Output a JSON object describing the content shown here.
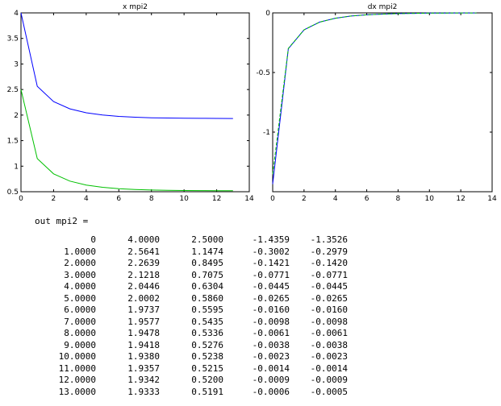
{
  "chart_data": [
    {
      "type": "line",
      "title": "x mpi2",
      "xlim": [
        0,
        14
      ],
      "ylim": [
        0.5,
        4
      ],
      "xticks": [
        "0",
        "2",
        "4",
        "6",
        "8",
        "10",
        "12",
        "14"
      ],
      "yticks": [
        "0.5",
        "1",
        "1.5",
        "2",
        "2.5",
        "3",
        "3.5",
        "4"
      ],
      "x": [
        0,
        1,
        2,
        3,
        4,
        5,
        6,
        7,
        8,
        9,
        10,
        11,
        12,
        13
      ],
      "series": [
        {
          "color": "#0000ff",
          "values": [
            4.0,
            2.5641,
            2.2639,
            2.1218,
            2.0446,
            2.0002,
            1.9737,
            1.9577,
            1.9478,
            1.9418,
            1.938,
            1.9357,
            1.9342,
            1.9333
          ]
        },
        {
          "color": "#00c000",
          "values": [
            2.5,
            1.1474,
            0.8495,
            0.7075,
            0.6304,
            0.586,
            0.5595,
            0.5435,
            0.5336,
            0.5276,
            0.5238,
            0.5215,
            0.52,
            0.5191
          ]
        }
      ]
    },
    {
      "type": "line",
      "title": "dx mpi2",
      "xlim": [
        0,
        14
      ],
      "ylim": [
        -1.5,
        0
      ],
      "xticks": [
        "0",
        "2",
        "4",
        "6",
        "8",
        "10",
        "12",
        "14"
      ],
      "yticks": [
        "0",
        "-0.5",
        "-1"
      ],
      "ytick_values": [
        0,
        -0.5,
        -1
      ],
      "x": [
        0,
        1,
        2,
        3,
        4,
        5,
        6,
        7,
        8,
        9,
        10,
        11,
        12,
        13
      ],
      "series": [
        {
          "color": "#0000ff",
          "values": [
            -1.4359,
            -0.3002,
            -0.1421,
            -0.0771,
            -0.0445,
            -0.0265,
            -0.016,
            -0.0098,
            -0.0061,
            -0.0038,
            -0.0023,
            -0.0014,
            -0.0009,
            -0.0006
          ]
        },
        {
          "color": "#00c000",
          "values": [
            -1.3526,
            -0.2979,
            -0.142,
            -0.0771,
            -0.0445,
            -0.0265,
            -0.016,
            -0.0098,
            -0.0061,
            -0.0038,
            -0.0023,
            -0.0014,
            -0.0009,
            -0.0005
          ]
        }
      ]
    }
  ],
  "output": {
    "label": "out mpi2 =",
    "rows": [
      [
        "0",
        "4.0000",
        "2.5000",
        "-1.4359",
        "-1.3526"
      ],
      [
        "1.0000",
        "2.5641",
        "1.1474",
        "-0.3002",
        "-0.2979"
      ],
      [
        "2.0000",
        "2.2639",
        "0.8495",
        "-0.1421",
        "-0.1420"
      ],
      [
        "3.0000",
        "2.1218",
        "0.7075",
        "-0.0771",
        "-0.0771"
      ],
      [
        "4.0000",
        "2.0446",
        "0.6304",
        "-0.0445",
        "-0.0445"
      ],
      [
        "5.0000",
        "2.0002",
        "0.5860",
        "-0.0265",
        "-0.0265"
      ],
      [
        "6.0000",
        "1.9737",
        "0.5595",
        "-0.0160",
        "-0.0160"
      ],
      [
        "7.0000",
        "1.9577",
        "0.5435",
        "-0.0098",
        "-0.0098"
      ],
      [
        "8.0000",
        "1.9478",
        "0.5336",
        "-0.0061",
        "-0.0061"
      ],
      [
        "9.0000",
        "1.9418",
        "0.5276",
        "-0.0038",
        "-0.0038"
      ],
      [
        "10.0000",
        "1.9380",
        "0.5238",
        "-0.0023",
        "-0.0023"
      ],
      [
        "11.0000",
        "1.9357",
        "0.5215",
        "-0.0014",
        "-0.0014"
      ],
      [
        "12.0000",
        "1.9342",
        "0.5200",
        "-0.0009",
        "-0.0009"
      ],
      [
        "13.0000",
        "1.9333",
        "0.5191",
        "-0.0006",
        "-0.0005"
      ]
    ]
  }
}
